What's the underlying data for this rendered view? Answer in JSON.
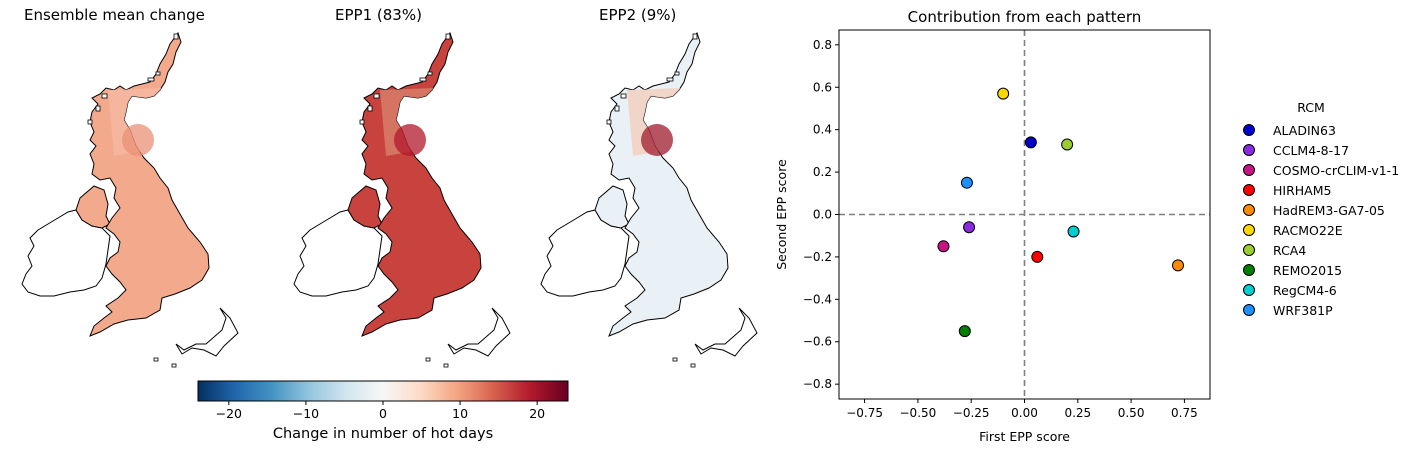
{
  "chart_data": [
    {
      "type": "heatmap",
      "title": "Ensemble mean change",
      "colormap": "RdBu_r",
      "fill": {
        "base": "#f3a98c",
        "north": "#f5b79f",
        "hot": "#ea9077"
      }
    },
    {
      "type": "heatmap",
      "title": "EPP1 (83%)",
      "colormap": "RdBu_r",
      "fill": {
        "base": "#c8433e",
        "north": "#d67a67",
        "hot": "#b2182b"
      }
    },
    {
      "type": "heatmap",
      "title": "EPP2 (9%)",
      "colormap": "RdBu_r",
      "fill": {
        "base": "#eaf1f6",
        "north": "#f3d2c4",
        "hot": "#9e1b2c"
      }
    },
    {
      "type": "colorbar",
      "label": "Change in number of hot days",
      "vmin": -24,
      "vmax": 24,
      "ticks": [
        -20,
        -10,
        0,
        10,
        20
      ],
      "tick_labels": [
        "−20",
        "−10",
        "0",
        "10",
        "20"
      ]
    },
    {
      "type": "scatter",
      "title": "Contribution from each pattern",
      "xlabel": "First EPP score",
      "ylabel": "Second EPP score",
      "xlim": [
        -0.87,
        0.87
      ],
      "ylim": [
        -0.87,
        0.87
      ],
      "xticks": [
        -0.75,
        -0.5,
        -0.25,
        0,
        0.25,
        0.5,
        0.75
      ],
      "xtick_labels": [
        "−0.75",
        "−0.50",
        "−0.25",
        "0.00",
        "0.25",
        "0.50",
        "0.75"
      ],
      "yticks": [
        -0.8,
        -0.6,
        -0.4,
        -0.2,
        0,
        0.2,
        0.4,
        0.6,
        0.8
      ],
      "ytick_labels": [
        "−0.8",
        "−0.6",
        "−0.4",
        "−0.2",
        "0.0",
        "0.2",
        "0.4",
        "0.6",
        "0.8"
      ],
      "reference_lines": {
        "x": 0,
        "y": 0,
        "style": "dashed"
      },
      "legend_title": "RCM",
      "legend_position": "outside-right",
      "points": [
        {
          "name": "ALADIN63",
          "x": 0.03,
          "y": 0.34,
          "color": "#0000cd"
        },
        {
          "name": "CCLM4-8-17",
          "x": -0.26,
          "y": -0.06,
          "color": "#8a2be2"
        },
        {
          "name": "COSMO-crCLIM-v1-1",
          "x": -0.38,
          "y": -0.15,
          "color": "#c71585"
        },
        {
          "name": "HIRHAM5",
          "x": 0.06,
          "y": -0.2,
          "color": "#ff0000"
        },
        {
          "name": "HadREM3-GA7-05",
          "x": 0.72,
          "y": -0.24,
          "color": "#ff8c00"
        },
        {
          "name": "RACMO22E",
          "x": -0.1,
          "y": 0.57,
          "color": "#ffd700"
        },
        {
          "name": "RCA4",
          "x": 0.2,
          "y": 0.33,
          "color": "#9acd32"
        },
        {
          "name": "REMO2015",
          "x": -0.28,
          "y": -0.55,
          "color": "#008000"
        },
        {
          "name": "RegCM4-6",
          "x": 0.23,
          "y": -0.08,
          "color": "#00ced1"
        },
        {
          "name": "WRF381P",
          "x": -0.27,
          "y": 0.15,
          "color": "#1e90ff"
        }
      ]
    }
  ]
}
